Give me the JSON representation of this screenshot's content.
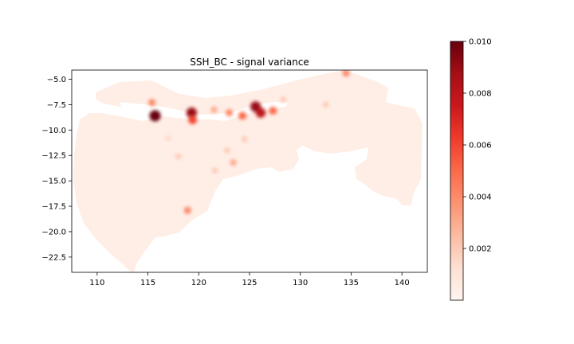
{
  "chart_data": [
    {
      "type": "heatmap",
      "title": "SSH_BC - signal variance",
      "xlabel": "",
      "ylabel": "",
      "xlim": [
        107.5,
        142.5
      ],
      "ylim": [
        -24.0,
        -4.1
      ],
      "x_ticks": [
        110,
        115,
        120,
        125,
        130,
        135,
        140
      ],
      "y_ticks": [
        -5.0,
        -7.5,
        -10.0,
        -12.5,
        -15.0,
        -17.5,
        -20.0,
        -22.5
      ],
      "x_tick_labels": [
        "110",
        "115",
        "120",
        "125",
        "130",
        "135",
        "140"
      ],
      "y_tick_labels": [
        "−5.0",
        "−7.5",
        "−10.0",
        "−12.5",
        "−15.0",
        "−17.5",
        "−20.0",
        "−22.5"
      ],
      "grid": false,
      "colormap": "Reds",
      "background_value": 0.0004,
      "hotspots": [
        {
          "lon": 115.7,
          "lat": -8.6,
          "value": 0.01
        },
        {
          "lon": 115.4,
          "lat": -7.3,
          "value": 0.004
        },
        {
          "lon": 119.3,
          "lat": -8.3,
          "value": 0.009
        },
        {
          "lon": 119.4,
          "lat": -9.0,
          "value": 0.006
        },
        {
          "lon": 121.5,
          "lat": -8.0,
          "value": 0.003
        },
        {
          "lon": 123.0,
          "lat": -8.3,
          "value": 0.004
        },
        {
          "lon": 124.3,
          "lat": -8.6,
          "value": 0.005
        },
        {
          "lon": 125.6,
          "lat": -7.7,
          "value": 0.009
        },
        {
          "lon": 126.1,
          "lat": -8.3,
          "value": 0.008
        },
        {
          "lon": 127.3,
          "lat": -8.1,
          "value": 0.005
        },
        {
          "lon": 128.3,
          "lat": -7.0,
          "value": 0.002
        },
        {
          "lon": 134.5,
          "lat": -4.4,
          "value": 0.004
        },
        {
          "lon": 132.5,
          "lat": -7.5,
          "value": 0.002
        },
        {
          "lon": 123.4,
          "lat": -13.2,
          "value": 0.003
        },
        {
          "lon": 122.8,
          "lat": -12.0,
          "value": 0.002
        },
        {
          "lon": 121.6,
          "lat": -14.0,
          "value": 0.002
        },
        {
          "lon": 118.9,
          "lat": -17.9,
          "value": 0.004
        },
        {
          "lon": 118.0,
          "lat": -12.6,
          "value": 0.002
        },
        {
          "lon": 117.0,
          "lat": -10.8,
          "value": 0.0015
        },
        {
          "lon": 124.5,
          "lat": -10.9,
          "value": 0.002
        }
      ]
    },
    {
      "type": "colorbar",
      "colormap": "Reds",
      "vmin": 0.0,
      "vmax": 0.01,
      "ticks": [
        0.002,
        0.004,
        0.006,
        0.008,
        0.01
      ],
      "tick_labels": [
        "0.002",
        "0.004",
        "0.006",
        "0.008",
        "0.010"
      ]
    }
  ]
}
